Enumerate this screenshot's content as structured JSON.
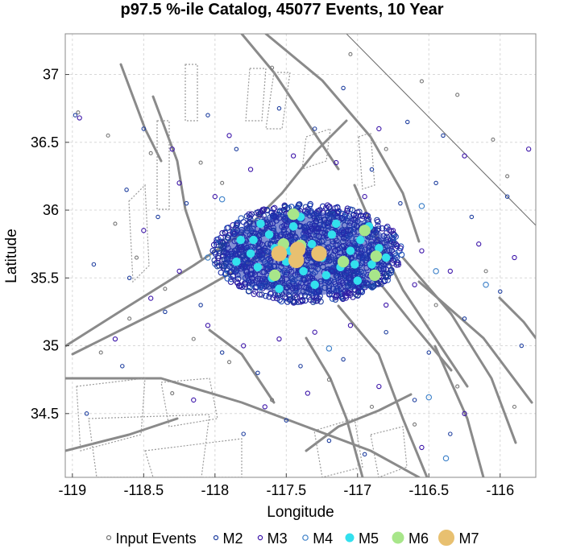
{
  "chart_data": {
    "type": "scatter",
    "title": "p97.5 %-ile Catalog, 45077 Events, 10 Year",
    "xlabel": "Longitude",
    "ylabel": "Latitude",
    "xlim": [
      -119.05,
      -115.75
    ],
    "ylim": [
      34.03,
      37.3
    ],
    "xticks": [
      -119,
      -118.5,
      -118,
      -117.5,
      -117,
      -116.5,
      -116
    ],
    "yticks": [
      34.5,
      35,
      35.5,
      36,
      36.5,
      37
    ],
    "grid": true,
    "legend_placement": "bottom",
    "cluster_center": {
      "lon": -117.35,
      "lat": 35.68
    },
    "series": [
      {
        "name": "Input Events",
        "color": "#777777",
        "filled": false,
        "points": [
          [
            -118.96,
            36.72
          ],
          [
            -118.75,
            36.55
          ],
          [
            -118.45,
            36.42
          ],
          [
            -118.1,
            36.35
          ],
          [
            -117.95,
            36.2
          ],
          [
            -116.55,
            36.95
          ],
          [
            -116.3,
            36.85
          ],
          [
            -116.05,
            36.52
          ],
          [
            -115.95,
            36.25
          ],
          [
            -118.7,
            35.9
          ],
          [
            -118.55,
            35.65
          ],
          [
            -118.35,
            35.42
          ],
          [
            -118.15,
            35.05
          ],
          [
            -117.9,
            34.88
          ],
          [
            -117.6,
            34.6
          ],
          [
            -117.2,
            34.75
          ],
          [
            -116.9,
            34.55
          ],
          [
            -116.6,
            34.42
          ],
          [
            -116.3,
            34.7
          ],
          [
            -115.9,
            34.55
          ],
          [
            -118.8,
            34.95
          ],
          [
            -118.3,
            34.65
          ],
          [
            -117.05,
            37.15
          ],
          [
            -117.6,
            37.05
          ],
          [
            -116.8,
            36.45
          ],
          [
            -116.45,
            35.3
          ],
          [
            -116.1,
            35.55
          ],
          [
            -118.6,
            35.2
          ]
        ]
      },
      {
        "name": "M2",
        "color": "#1f3f9f",
        "filled": false,
        "points": [
          [
            -118.98,
            36.7
          ],
          [
            -118.62,
            36.15
          ],
          [
            -118.4,
            35.95
          ],
          [
            -118.2,
            36.05
          ],
          [
            -117.85,
            36.45
          ],
          [
            -117.55,
            36.75
          ],
          [
            -117.3,
            36.6
          ],
          [
            -117.1,
            36.9
          ],
          [
            -116.9,
            36.3
          ],
          [
            -116.7,
            36.05
          ],
          [
            -116.45,
            36.2
          ],
          [
            -116.2,
            35.95
          ],
          [
            -115.95,
            36.1
          ],
          [
            -118.85,
            35.6
          ],
          [
            -118.6,
            35.5
          ],
          [
            -118.35,
            35.25
          ],
          [
            -118.1,
            35.3
          ],
          [
            -117.95,
            34.95
          ],
          [
            -117.7,
            34.8
          ],
          [
            -117.4,
            34.85
          ],
          [
            -117.1,
            34.9
          ],
          [
            -116.8,
            35.1
          ],
          [
            -116.5,
            34.95
          ],
          [
            -116.25,
            35.2
          ],
          [
            -116.0,
            35.4
          ],
          [
            -118.9,
            34.5
          ],
          [
            -118.65,
            34.85
          ],
          [
            -117.8,
            34.35
          ],
          [
            -117.5,
            34.45
          ],
          [
            -117.2,
            34.3
          ],
          [
            -116.95,
            34.2
          ],
          [
            -116.6,
            34.6
          ],
          [
            -116.35,
            34.35
          ],
          [
            -115.85,
            35.0
          ],
          [
            -118.5,
            36.6
          ],
          [
            -118.05,
            36.7
          ],
          [
            -116.65,
            36.65
          ],
          [
            -116.4,
            36.55
          ]
        ]
      },
      {
        "name": "M3",
        "color": "#3a12a8",
        "filled": false,
        "points": [
          [
            -118.95,
            36.68
          ],
          [
            -118.5,
            35.85
          ],
          [
            -118.25,
            36.2
          ],
          [
            -118.0,
            36.1
          ],
          [
            -117.75,
            36.3
          ],
          [
            -117.45,
            36.4
          ],
          [
            -117.15,
            36.35
          ],
          [
            -116.95,
            36.1
          ],
          [
            -116.75,
            35.85
          ],
          [
            -116.55,
            35.7
          ],
          [
            -116.35,
            35.55
          ],
          [
            -116.15,
            35.75
          ],
          [
            -115.9,
            35.65
          ],
          [
            -118.45,
            35.35
          ],
          [
            -118.25,
            35.55
          ],
          [
            -118.05,
            35.15
          ],
          [
            -117.8,
            35.0
          ],
          [
            -117.55,
            35.05
          ],
          [
            -117.3,
            35.1
          ],
          [
            -117.05,
            35.15
          ],
          [
            -116.8,
            35.3
          ],
          [
            -116.6,
            35.45
          ],
          [
            -118.7,
            35.05
          ],
          [
            -118.15,
            34.6
          ],
          [
            -117.65,
            34.55
          ],
          [
            -117.35,
            34.65
          ],
          [
            -116.85,
            34.7
          ],
          [
            -116.55,
            34.25
          ],
          [
            -116.25,
            34.5
          ],
          [
            -118.3,
            36.45
          ],
          [
            -117.9,
            36.55
          ],
          [
            -116.85,
            36.6
          ],
          [
            -116.25,
            36.4
          ],
          [
            -115.8,
            36.45
          ]
        ]
      },
      {
        "name": "M4",
        "color": "#3a7fc8",
        "filled": false,
        "points": [
          [
            -117.2,
            34.98
          ],
          [
            -116.5,
            34.62
          ],
          [
            -116.45,
            35.55
          ],
          [
            -116.1,
            35.45
          ],
          [
            -116.38,
            34.17
          ],
          [
            -118.05,
            35.65
          ],
          [
            -116.55,
            36.03
          ],
          [
            -117.95,
            36.08
          ]
        ]
      },
      {
        "name": "M5",
        "color": "#33e0ee",
        "filled": true,
        "points": [
          [
            -117.82,
            35.78
          ],
          [
            -117.75,
            35.68
          ],
          [
            -117.7,
            35.58
          ],
          [
            -117.62,
            35.82
          ],
          [
            -117.58,
            35.72
          ],
          [
            -117.5,
            35.62
          ],
          [
            -117.45,
            35.88
          ],
          [
            -117.38,
            35.55
          ],
          [
            -117.32,
            35.75
          ],
          [
            -117.25,
            35.65
          ],
          [
            -117.18,
            35.82
          ],
          [
            -117.12,
            35.58
          ],
          [
            -117.05,
            35.7
          ],
          [
            -116.98,
            35.78
          ],
          [
            -116.9,
            35.6
          ],
          [
            -116.85,
            35.72
          ],
          [
            -117.6,
            35.5
          ],
          [
            -117.3,
            35.45
          ],
          [
            -117.0,
            35.48
          ],
          [
            -117.68,
            35.9
          ],
          [
            -117.4,
            35.95
          ],
          [
            -117.15,
            35.9
          ],
          [
            -116.92,
            35.88
          ],
          [
            -117.85,
            35.62
          ],
          [
            -117.55,
            35.42
          ],
          [
            -117.22,
            35.52
          ],
          [
            -116.8,
            35.65
          ],
          [
            -117.73,
            35.78
          ],
          [
            -117.48,
            35.7
          ],
          [
            -117.02,
            35.6
          ]
        ]
      },
      {
        "name": "M6",
        "color": "#a8e68a",
        "filled": true,
        "points": [
          [
            -117.52,
            35.75
          ],
          [
            -117.4,
            35.74
          ],
          [
            -117.1,
            35.62
          ],
          [
            -116.88,
            35.52
          ],
          [
            -117.58,
            35.52
          ],
          [
            -116.87,
            35.66
          ],
          [
            -117.45,
            35.97
          ],
          [
            -116.95,
            35.85
          ]
        ]
      },
      {
        "name": "M7",
        "color": "#e8c070",
        "filled": true,
        "points": [
          [
            -117.55,
            35.68
          ],
          [
            -117.43,
            35.63
          ],
          [
            -117.27,
            35.68
          ],
          [
            -117.42,
            35.71
          ]
        ]
      }
    ]
  }
}
